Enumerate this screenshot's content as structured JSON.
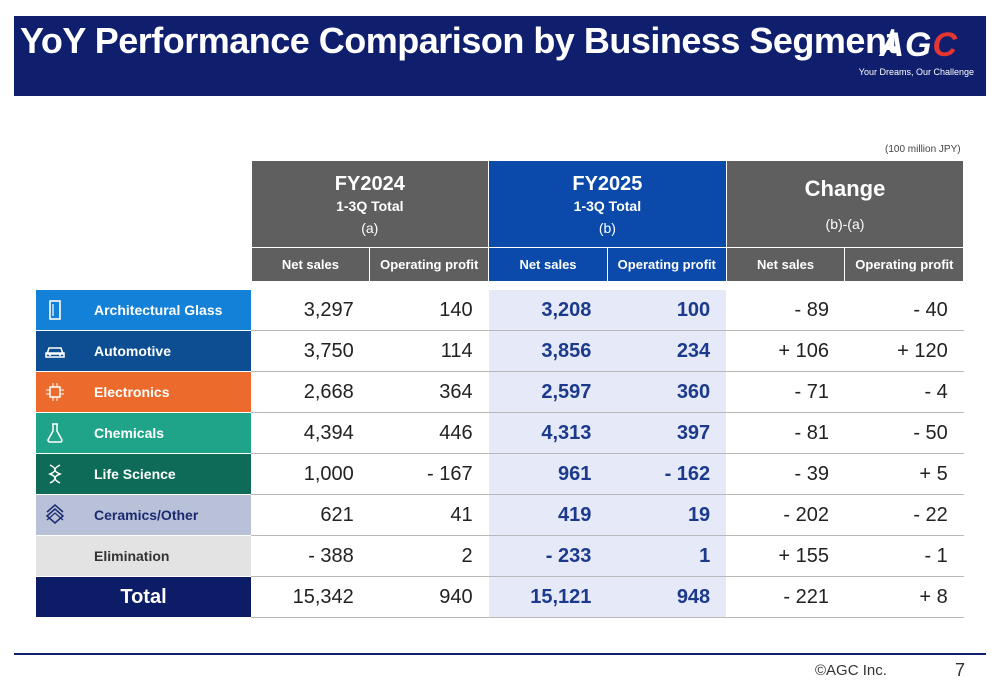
{
  "header": {
    "title": "YoY Performance Comparison by Business Segment",
    "logo": {
      "word_left": "AG",
      "word_right": "C",
      "tagline": "Your Dreams, Our Challenge"
    }
  },
  "unit_note": "(100 million JPY)",
  "table": {
    "groups": [
      {
        "year": "FY2024",
        "period": "1-3Q Total",
        "label": "(a)"
      },
      {
        "year": "FY2025",
        "period": "1-3Q Total",
        "label": "(b)"
      },
      {
        "year": "Change",
        "period": "",
        "label": "(b)-(a)"
      }
    ],
    "subheaders": [
      "Net sales",
      "Operating profit",
      "Net sales",
      "Operating profit",
      "Net sales",
      "Operating profit"
    ],
    "rows": [
      {
        "name": "Architectural Glass",
        "icon": "glass-panel-icon",
        "color": "#1481d8",
        "values": [
          "3,297",
          "140",
          "3,208",
          "100",
          "- 89",
          "- 40"
        ]
      },
      {
        "name": "Automotive",
        "icon": "car-icon",
        "color": "#0d4e92",
        "values": [
          "3,750",
          "114",
          "3,856",
          "234",
          "+ 106",
          "+ 120"
        ]
      },
      {
        "name": "Electronics",
        "icon": "chip-icon",
        "color": "#ec6a2c",
        "values": [
          "2,668",
          "364",
          "2,597",
          "360",
          "- 71",
          "- 4"
        ]
      },
      {
        "name": "Chemicals",
        "icon": "flask-icon",
        "color": "#1fa48a",
        "values": [
          "4,394",
          "446",
          "4,313",
          "397",
          "- 81",
          "- 50"
        ]
      },
      {
        "name": "Life Science",
        "icon": "dna-icon",
        "color": "#0d6b58",
        "values": [
          "1,000",
          "- 167",
          "961",
          "- 162",
          "- 39",
          "+ 5"
        ]
      },
      {
        "name": "Ceramics/Other",
        "icon": "ceramics-icon",
        "color": "#b9c1d8",
        "values": [
          "621",
          "41",
          "419",
          "19",
          "- 202",
          "- 22"
        ]
      },
      {
        "name": "Elimination",
        "icon": "",
        "color": "#e3e3e3",
        "values": [
          "- 388",
          "2",
          "- 233",
          "1",
          "+ 155",
          "- 1"
        ]
      }
    ],
    "total": {
      "name": "Total",
      "values": [
        "15,342",
        "940",
        "15,121",
        "948",
        "- 221",
        "+ 8"
      ]
    }
  },
  "footer": {
    "copyright": "©AGC Inc.",
    "page_number": "7"
  }
}
